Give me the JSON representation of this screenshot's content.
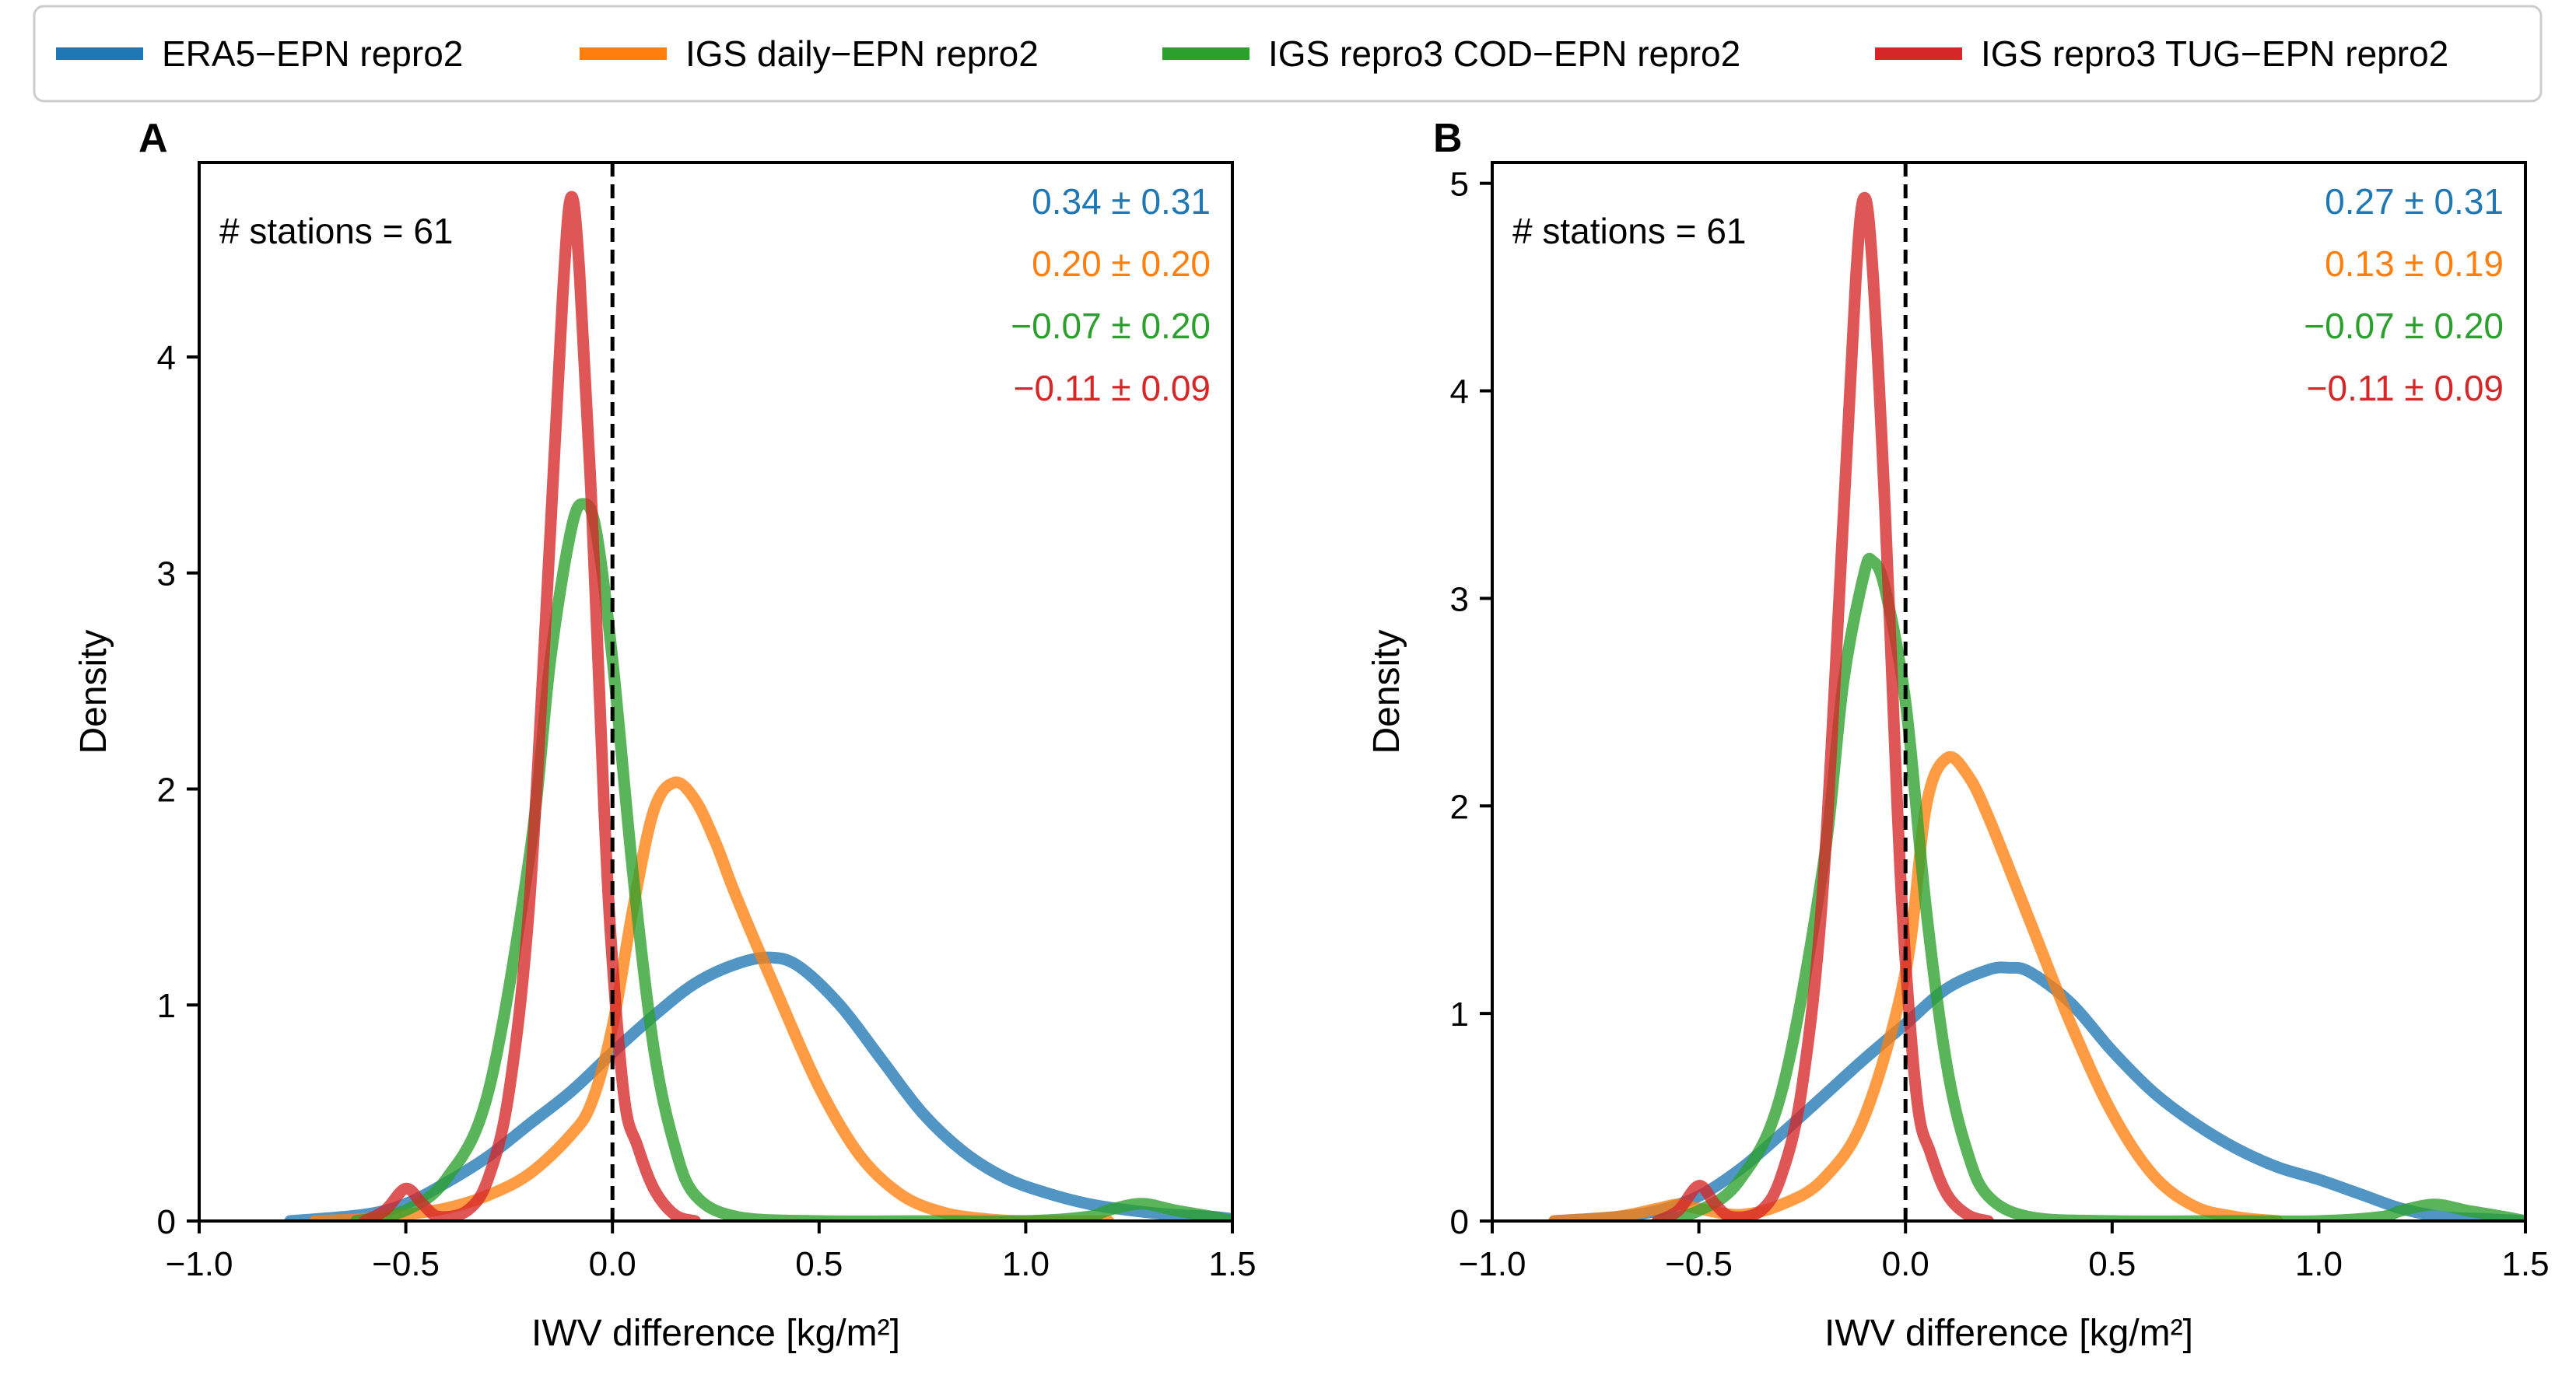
{
  "legend": {
    "items": [
      {
        "label": "ERA5−EPN repro2",
        "color": "#1f77b4"
      },
      {
        "label": "IGS daily−EPN repro2",
        "color": "#ff7f0e"
      },
      {
        "label": "IGS repro3 COD−EPN repro2",
        "color": "#2ca02c"
      },
      {
        "label": "IGS repro3 TUG−EPN repro2",
        "color": "#d62728"
      }
    ]
  },
  "chart_data": [
    {
      "type": "line",
      "panel": "A",
      "xlabel": "IWV difference [kg/m²]",
      "ylabel": "Density",
      "xlim": [
        -1.0,
        1.5
      ],
      "ylim": [
        0,
        4.9
      ],
      "xticks": [
        -1.0,
        -0.5,
        0.0,
        0.5,
        1.0,
        1.5
      ],
      "xtick_labels": [
        "−1.0",
        "−0.5",
        "0.0",
        "0.5",
        "1.0",
        "1.5"
      ],
      "yticks": [
        0,
        1,
        2,
        3,
        4
      ],
      "yticks_labels": [
        "0",
        "1",
        "2",
        "3",
        "4"
      ],
      "annotation": "# stations = 61",
      "vline_x": 0.0,
      "stats": [
        "0.34 ± 0.31",
        "0.20 ± 0.20",
        "−0.07 ± 0.20",
        "−0.11 ± 0.09"
      ],
      "series": [
        {
          "name": "ERA5−EPN repro2",
          "color": "#1f77b4",
          "x": [
            -0.78,
            -0.6,
            -0.5,
            -0.4,
            -0.3,
            -0.2,
            -0.1,
            0.0,
            0.1,
            0.2,
            0.3,
            0.38,
            0.45,
            0.55,
            0.65,
            0.75,
            0.85,
            0.95,
            1.05,
            1.15,
            1.25,
            1.35,
            1.45,
            1.5
          ],
          "y": [
            0.0,
            0.03,
            0.08,
            0.18,
            0.3,
            0.45,
            0.6,
            0.78,
            0.95,
            1.1,
            1.19,
            1.22,
            1.18,
            1.0,
            0.75,
            0.5,
            0.32,
            0.2,
            0.13,
            0.08,
            0.05,
            0.03,
            0.02,
            0.01
          ]
        },
        {
          "name": "IGS daily−EPN repro2",
          "color": "#ff7f0e",
          "x": [
            -0.72,
            -0.6,
            -0.5,
            -0.4,
            -0.3,
            -0.2,
            -0.1,
            -0.05,
            0.0,
            0.05,
            0.1,
            0.15,
            0.2,
            0.25,
            0.3,
            0.4,
            0.5,
            0.6,
            0.7,
            0.8,
            0.9,
            1.0,
            1.2
          ],
          "y": [
            0.0,
            0.01,
            0.03,
            0.06,
            0.12,
            0.22,
            0.4,
            0.55,
            0.9,
            1.45,
            1.9,
            2.03,
            1.95,
            1.75,
            1.5,
            1.05,
            0.62,
            0.3,
            0.12,
            0.04,
            0.01,
            0.0,
            0.0
          ]
        },
        {
          "name": "IGS repro3 COD−EPN repro2",
          "color": "#2ca02c",
          "x": [
            -0.62,
            -0.5,
            -0.4,
            -0.3,
            -0.2,
            -0.15,
            -0.1,
            -0.07,
            -0.04,
            0.0,
            0.05,
            0.1,
            0.15,
            0.2,
            0.3,
            0.5,
            0.8,
            1.0,
            1.15,
            1.2,
            1.28,
            1.36,
            1.45,
            1.5
          ],
          "y": [
            0.0,
            0.05,
            0.2,
            0.6,
            1.7,
            2.6,
            3.2,
            3.32,
            3.2,
            2.6,
            1.6,
            0.8,
            0.35,
            0.12,
            0.02,
            0.0,
            0.0,
            0.0,
            0.02,
            0.05,
            0.08,
            0.05,
            0.02,
            0.0
          ]
        },
        {
          "name": "IGS repro3 TUG−EPN repro2",
          "color": "#d62728",
          "x": [
            -0.6,
            -0.55,
            -0.5,
            -0.46,
            -0.42,
            -0.35,
            -0.3,
            -0.25,
            -0.2,
            -0.15,
            -0.12,
            -0.1,
            -0.08,
            -0.05,
            -0.02,
            0.0,
            0.03,
            0.06,
            0.1,
            0.15,
            0.2
          ],
          "y": [
            0.0,
            0.05,
            0.15,
            0.08,
            0.02,
            0.05,
            0.2,
            0.6,
            1.5,
            3.2,
            4.3,
            4.74,
            4.4,
            3.3,
            1.9,
            1.2,
            0.55,
            0.35,
            0.15,
            0.03,
            0.0
          ]
        }
      ]
    },
    {
      "type": "line",
      "panel": "B",
      "xlabel": "IWV difference [kg/m²]",
      "ylabel": "Density",
      "xlim": [
        -1.0,
        1.5
      ],
      "ylim": [
        0,
        5.1
      ],
      "xticks": [
        -1.0,
        -0.5,
        0.0,
        0.5,
        1.0,
        1.5
      ],
      "xtick_labels": [
        "−1.0",
        "−0.5",
        "0.0",
        "0.5",
        "1.0",
        "1.5"
      ],
      "yticks": [
        0,
        1,
        2,
        3,
        4,
        5
      ],
      "yticks_labels": [
        "0",
        "1",
        "2",
        "3",
        "4",
        "5"
      ],
      "annotation": "# stations = 61",
      "vline_x": 0.0,
      "stats": [
        "0.27 ± 0.31",
        "0.13 ± 0.19",
        "−0.07 ± 0.20",
        "−0.11 ± 0.09"
      ],
      "series": [
        {
          "name": "ERA5−EPN repro2",
          "color": "#1f77b4",
          "x": [
            -0.85,
            -0.7,
            -0.6,
            -0.5,
            -0.4,
            -0.3,
            -0.2,
            -0.1,
            0.0,
            0.1,
            0.2,
            0.25,
            0.3,
            0.4,
            0.5,
            0.6,
            0.7,
            0.8,
            0.9,
            1.0,
            1.1,
            1.2,
            1.3,
            1.4,
            1.5
          ],
          "y": [
            0.0,
            0.02,
            0.05,
            0.12,
            0.25,
            0.42,
            0.6,
            0.78,
            0.95,
            1.12,
            1.21,
            1.22,
            1.2,
            1.05,
            0.82,
            0.62,
            0.47,
            0.35,
            0.26,
            0.2,
            0.13,
            0.06,
            0.02,
            0.01,
            0.0
          ]
        },
        {
          "name": "IGS daily−EPN repro2",
          "color": "#ff7f0e",
          "x": [
            -0.85,
            -0.7,
            -0.6,
            -0.55,
            -0.5,
            -0.4,
            -0.3,
            -0.2,
            -0.1,
            0.0,
            0.05,
            0.1,
            0.15,
            0.2,
            0.3,
            0.4,
            0.5,
            0.6,
            0.7,
            0.8,
            0.9
          ],
          "y": [
            0.0,
            0.02,
            0.06,
            0.08,
            0.06,
            0.03,
            0.08,
            0.2,
            0.5,
            1.2,
            2.0,
            2.23,
            2.15,
            1.95,
            1.45,
            0.95,
            0.52,
            0.22,
            0.07,
            0.02,
            0.0
          ]
        },
        {
          "name": "IGS repro3 COD−EPN repro2",
          "color": "#2ca02c",
          "x": [
            -0.6,
            -0.5,
            -0.4,
            -0.3,
            -0.2,
            -0.15,
            -0.1,
            -0.08,
            -0.05,
            0.0,
            0.05,
            0.1,
            0.15,
            0.2,
            0.3,
            0.5,
            0.8,
            1.0,
            1.15,
            1.2,
            1.28,
            1.36,
            1.45,
            1.5
          ],
          "y": [
            0.0,
            0.05,
            0.2,
            0.62,
            1.7,
            2.6,
            3.12,
            3.18,
            3.05,
            2.5,
            1.5,
            0.75,
            0.33,
            0.12,
            0.02,
            0.0,
            0.0,
            0.0,
            0.02,
            0.05,
            0.08,
            0.05,
            0.02,
            0.0
          ]
        },
        {
          "name": "IGS repro3 TUG−EPN repro2",
          "color": "#d62728",
          "x": [
            -0.6,
            -0.55,
            -0.5,
            -0.46,
            -0.42,
            -0.35,
            -0.3,
            -0.25,
            -0.2,
            -0.15,
            -0.12,
            -0.1,
            -0.08,
            -0.05,
            -0.02,
            0.0,
            0.03,
            0.06,
            0.1,
            0.15,
            0.2
          ],
          "y": [
            0.0,
            0.05,
            0.17,
            0.08,
            0.02,
            0.05,
            0.22,
            0.65,
            1.6,
            3.4,
            4.55,
            4.93,
            4.6,
            3.45,
            2.0,
            1.25,
            0.55,
            0.33,
            0.13,
            0.03,
            0.0
          ]
        }
      ]
    }
  ]
}
